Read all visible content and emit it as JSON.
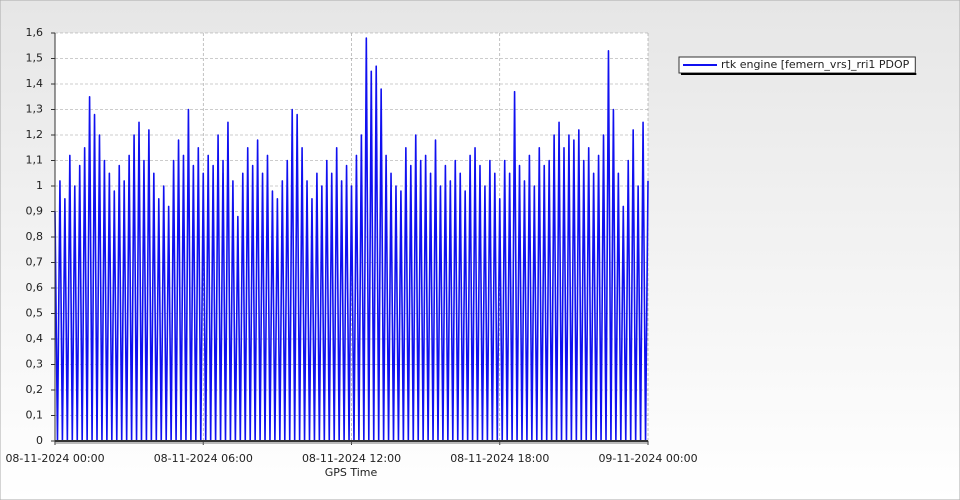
{
  "chart_data": {
    "type": "line",
    "x_label": "GPS Time",
    "xlim": [
      0,
      24
    ],
    "xticks": [
      {
        "value": 0,
        "label": "08-11-2024 00:00"
      },
      {
        "value": 6,
        "label": "08-11-2024 06:00"
      },
      {
        "value": 12,
        "label": "08-11-2024 12:00"
      },
      {
        "value": 18,
        "label": "08-11-2024 18:00"
      },
      {
        "value": 24,
        "label": "09-11-2024 00:00"
      }
    ],
    "ylim": [
      0,
      1.6
    ],
    "yticks": [
      0,
      {
        "value": 0.1,
        "label": "0,1"
      },
      {
        "value": 0.2,
        "label": "0,2"
      },
      {
        "value": 0.3,
        "label": "0,3"
      },
      {
        "value": 0.4,
        "label": "0,4"
      },
      {
        "value": 0.5,
        "label": "0,5"
      },
      {
        "value": 0.6,
        "label": "0,6"
      },
      {
        "value": 0.7,
        "label": "0,7"
      },
      {
        "value": 0.8,
        "label": "0,8"
      },
      {
        "value": 0.9,
        "label": "0,9"
      },
      1,
      {
        "value": 1.1,
        "label": "1,1"
      },
      {
        "value": 1.2,
        "label": "1,2"
      },
      {
        "value": 1.3,
        "label": "1,3"
      },
      {
        "value": 1.4,
        "label": "1,4"
      },
      {
        "value": 1.5,
        "label": "1,5"
      },
      {
        "value": 1.6,
        "label": "1,6"
      }
    ],
    "grid": true,
    "legend": "top-right",
    "series": [
      {
        "name": "rtk engine [femern_vrs]_rri1 PDOP",
        "color": "#1010f0",
        "x": [
          0,
          0.1,
          0.2,
          0.3,
          0.4,
          0.5,
          0.6,
          0.7,
          0.8,
          0.9,
          1,
          1.1,
          1.2,
          1.3,
          1.4,
          1.5,
          1.6,
          1.7,
          1.8,
          1.9,
          2,
          2.1,
          2.2,
          2.3,
          2.4,
          2.5,
          2.6,
          2.7,
          2.8,
          2.9,
          3,
          3.1,
          3.2,
          3.3,
          3.4,
          3.5,
          3.6,
          3.7,
          3.8,
          3.9,
          4,
          4.1,
          4.2,
          4.3,
          4.4,
          4.5,
          4.6,
          4.7,
          4.8,
          4.9,
          5,
          5.1,
          5.2,
          5.3,
          5.4,
          5.5,
          5.6,
          5.7,
          5.8,
          5.9,
          6,
          6.1,
          6.2,
          6.3,
          6.4,
          6.5,
          6.6,
          6.7,
          6.8,
          6.9,
          7,
          7.1,
          7.2,
          7.3,
          7.4,
          7.5,
          7.6,
          7.7,
          7.8,
          7.9,
          8,
          8.1,
          8.2,
          8.3,
          8.4,
          8.5,
          8.6,
          8.7,
          8.8,
          8.9,
          9,
          9.1,
          9.2,
          9.3,
          9.4,
          9.5,
          9.6,
          9.7,
          9.8,
          9.9,
          10,
          10.1,
          10.2,
          10.3,
          10.4,
          10.5,
          10.6,
          10.7,
          10.8,
          10.9,
          11,
          11.1,
          11.2,
          11.3,
          11.4,
          11.5,
          11.6,
          11.7,
          11.8,
          11.9,
          12,
          12.1,
          12.2,
          12.3,
          12.4,
          12.5,
          12.6,
          12.7,
          12.8,
          12.9,
          13,
          13.1,
          13.2,
          13.3,
          13.4,
          13.5,
          13.6,
          13.7,
          13.8,
          13.9,
          14,
          14.1,
          14.2,
          14.3,
          14.4,
          14.5,
          14.6,
          14.7,
          14.8,
          14.9,
          15,
          15.1,
          15.2,
          15.3,
          15.4,
          15.5,
          15.6,
          15.7,
          15.8,
          15.9,
          16,
          16.1,
          16.2,
          16.3,
          16.4,
          16.5,
          16.6,
          16.7,
          16.8,
          16.9,
          17,
          17.1,
          17.2,
          17.3,
          17.4,
          17.5,
          17.6,
          17.7,
          17.8,
          17.9,
          18,
          18.1,
          18.2,
          18.3,
          18.4,
          18.5,
          18.6,
          18.7,
          18.8,
          18.9,
          19,
          19.1,
          19.2,
          19.3,
          19.4,
          19.5,
          19.6,
          19.7,
          19.8,
          19.9,
          20,
          20.1,
          20.2,
          20.3,
          20.4,
          20.5,
          20.6,
          20.7,
          20.8,
          20.9,
          21,
          21.1,
          21.2,
          21.3,
          21.4,
          21.5,
          21.6,
          21.7,
          21.8,
          21.9,
          22,
          22.1,
          22.2,
          22.3,
          22.4,
          22.5,
          22.6,
          22.7,
          22.8,
          22.9,
          23,
          23.1,
          23.2,
          23.3,
          23.4,
          23.5,
          23.6,
          23.7,
          23.8,
          23.9,
          24
        ],
        "values": [
          0.9,
          0,
          1.02,
          0,
          0.95,
          0,
          1.12,
          0,
          1.0,
          0,
          1.08,
          0,
          1.15,
          0,
          1.35,
          0,
          1.28,
          0,
          1.2,
          0,
          1.1,
          0,
          1.05,
          0,
          0.98,
          0,
          1.08,
          0,
          1.02,
          0,
          1.12,
          0,
          1.2,
          0,
          1.25,
          0,
          1.1,
          0,
          1.22,
          0,
          1.05,
          0,
          0.95,
          0,
          1.0,
          0,
          0.92,
          0,
          1.1,
          0,
          1.18,
          0,
          1.12,
          0,
          1.3,
          0,
          1.08,
          0,
          1.15,
          0,
          1.05,
          0,
          1.12,
          0,
          1.08,
          0,
          1.2,
          0,
          1.1,
          0,
          1.25,
          0,
          1.02,
          0,
          0.88,
          0,
          1.05,
          0,
          1.15,
          0,
          1.08,
          0,
          1.18,
          0,
          1.05,
          0,
          1.12,
          0,
          0.98,
          0,
          0.95,
          0,
          1.02,
          0,
          1.1,
          0,
          1.3,
          0,
          1.28,
          0,
          1.15,
          0,
          1.02,
          0,
          0.95,
          0,
          1.05,
          0,
          1.0,
          0,
          1.1,
          0,
          1.05,
          0,
          1.15,
          0,
          1.02,
          0,
          1.08,
          0,
          1.0,
          0,
          1.12,
          0,
          1.2,
          0,
          1.58,
          0,
          1.45,
          0,
          1.47,
          0,
          1.38,
          0,
          1.12,
          0,
          1.05,
          0,
          1.0,
          0,
          0.98,
          0,
          1.15,
          0,
          1.08,
          0,
          1.2,
          0,
          1.1,
          0,
          1.12,
          0,
          1.05,
          0,
          1.18,
          0,
          1.0,
          0,
          1.08,
          0,
          1.02,
          0,
          1.1,
          0,
          1.05,
          0,
          0.98,
          0,
          1.12,
          0,
          1.15,
          0,
          1.08,
          0,
          1.0,
          0,
          1.1,
          0,
          1.05,
          0,
          0.95,
          0,
          1.1,
          0,
          1.05,
          0,
          1.37,
          0,
          1.08,
          0,
          1.02,
          0,
          1.12,
          0,
          1.0,
          0,
          1.15,
          0,
          1.08,
          0,
          1.1,
          0,
          1.2,
          0,
          1.25,
          0,
          1.15,
          0,
          1.2,
          0,
          1.18,
          0,
          1.22,
          0,
          1.1,
          0,
          1.15,
          0,
          1.05,
          0,
          1.12,
          0,
          1.2,
          0,
          1.53,
          0,
          1.3,
          0,
          1.05,
          0,
          0.92,
          0,
          1.1,
          0,
          1.22,
          0,
          1.0,
          0,
          1.25,
          0,
          1.02
        ]
      }
    ]
  }
}
